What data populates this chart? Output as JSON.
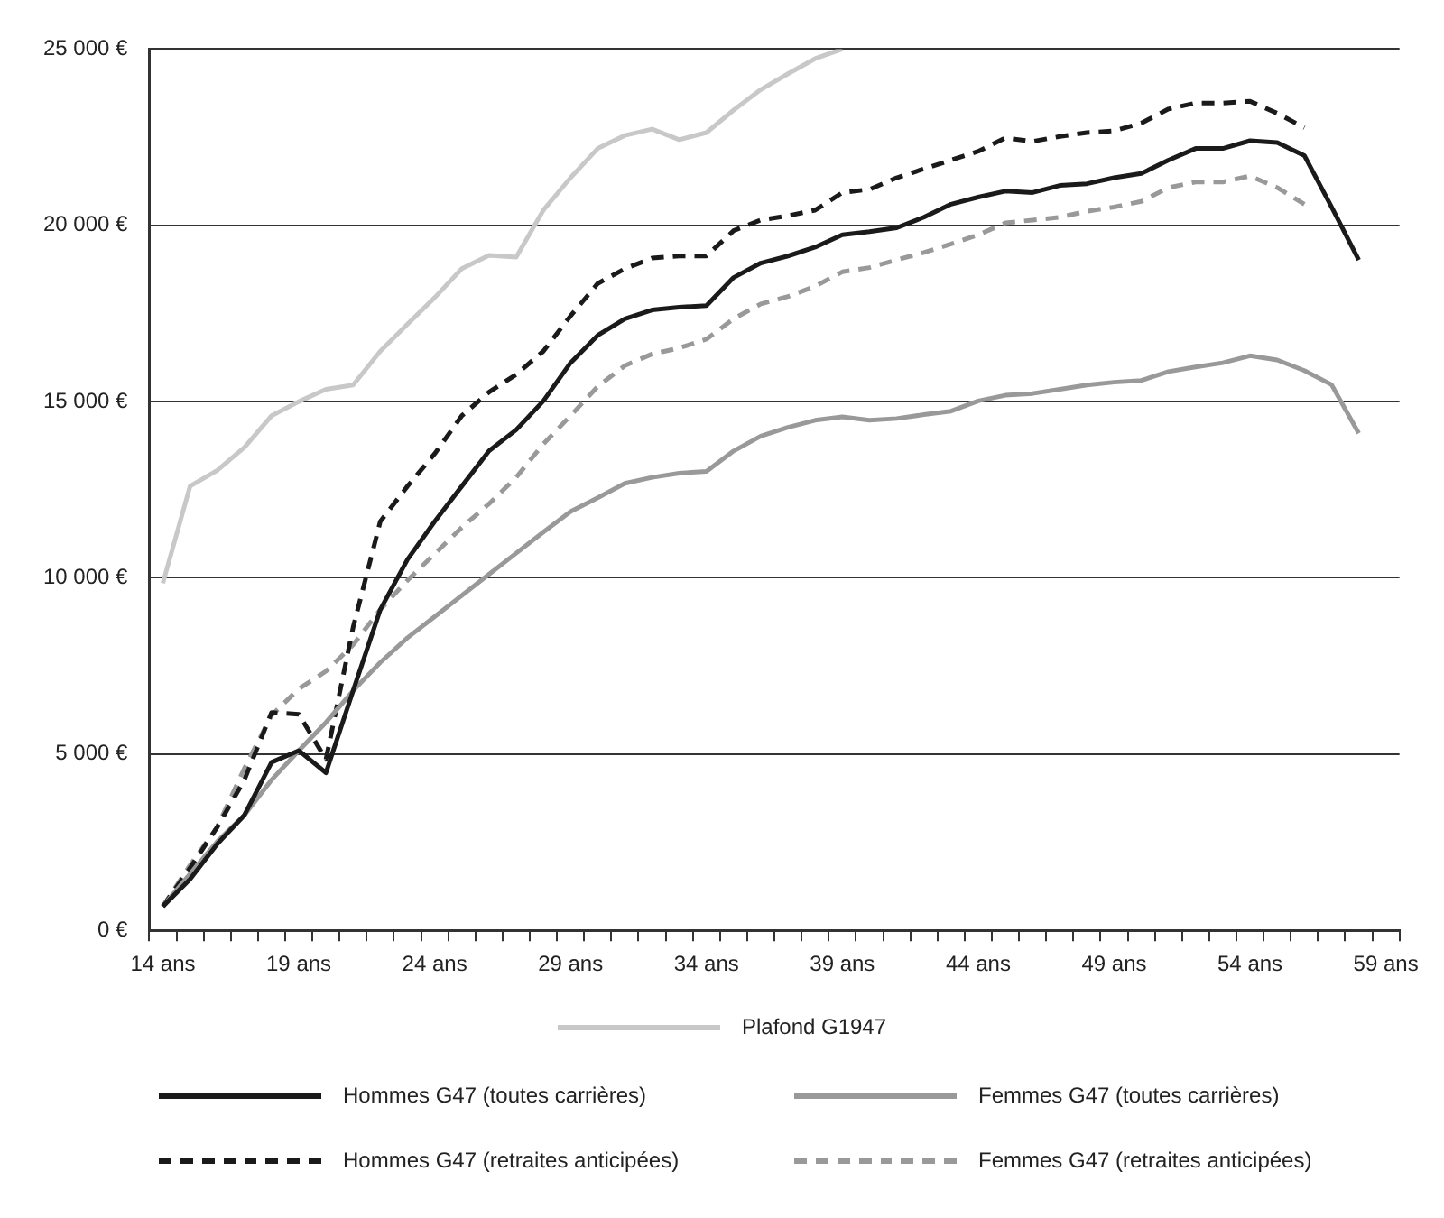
{
  "chart_data": {
    "type": "line",
    "categories": [
      "14 ans",
      null,
      null,
      null,
      null,
      "19 ans",
      null,
      null,
      null,
      null,
      "24 ans",
      null,
      null,
      null,
      null,
      "29 ans",
      null,
      null,
      null,
      null,
      "34 ans",
      null,
      null,
      null,
      null,
      "39 ans",
      null,
      null,
      null,
      null,
      "44 ans",
      null,
      null,
      null,
      null,
      "49 ans",
      null,
      null,
      null,
      null,
      "54 ans",
      null,
      null,
      null,
      null,
      "59 ans"
    ],
    "ylim": [
      0,
      25000
    ],
    "yticks": [
      {
        "value": 0,
        "label": "0 €"
      },
      {
        "value": 5000,
        "label": "5 000 €"
      },
      {
        "value": 10000,
        "label": "10 000 €"
      },
      {
        "value": 15000,
        "label": "15 000 €"
      },
      {
        "value": 20000,
        "label": "20 000 €"
      },
      {
        "value": 25000,
        "label": "25 000 €"
      }
    ],
    "grid": "y",
    "legend": "bottom",
    "marker": "none",
    "series": [
      {
        "name": "Plafond G1947",
        "color": "#c8c8c8",
        "line_style": "solid",
        "values": [
          9850,
          12600,
          13050,
          13700,
          14600,
          15000,
          15350,
          15470,
          16430,
          17200,
          17950,
          18770,
          19150,
          19100,
          20430,
          21350,
          22180,
          22550,
          22730,
          22430,
          22630,
          23270,
          23850,
          24300,
          24730,
          25000,
          null,
          null,
          null,
          null,
          null,
          null,
          null,
          null,
          null,
          null,
          null,
          null,
          null,
          null,
          null,
          null,
          null,
          null,
          null,
          null
        ]
      },
      {
        "name": "Hommes G47 (toutes carrières)",
        "color": "#1a1a1a",
        "line_style": "solid",
        "values": [
          680,
          1450,
          2450,
          3270,
          4770,
          5100,
          4470,
          6800,
          9100,
          10520,
          11600,
          12600,
          13600,
          14200,
          15020,
          16100,
          16880,
          17350,
          17600,
          17680,
          17720,
          18520,
          18930,
          19130,
          19380,
          19730,
          19820,
          19930,
          20230,
          20600,
          20800,
          20970,
          20930,
          21130,
          21180,
          21350,
          21470,
          21850,
          22180,
          22180,
          22400,
          22350,
          21980,
          20520,
          19020,
          null
        ]
      },
      {
        "name": "Femmes G47 (toutes carrières)",
        "color": "#999999",
        "line_style": "solid",
        "values": [
          680,
          1600,
          2520,
          3270,
          4270,
          5100,
          5900,
          6800,
          7600,
          8300,
          8900,
          9500,
          10100,
          10700,
          11300,
          11880,
          12270,
          12680,
          12850,
          12970,
          13020,
          13600,
          14020,
          14270,
          14470,
          14570,
          14470,
          14520,
          14630,
          14730,
          15020,
          15180,
          15230,
          15350,
          15470,
          15550,
          15600,
          15850,
          15980,
          16100,
          16300,
          16180,
          15880,
          15480,
          14100,
          null
        ]
      },
      {
        "name": "Hommes G47 (retraites anticipées)",
        "color": "#1a1a1a",
        "line_style": "dashed",
        "values": [
          680,
          1770,
          2930,
          4270,
          6180,
          6130,
          4850,
          8600,
          11600,
          12600,
          13520,
          14600,
          15270,
          15770,
          16430,
          17430,
          18350,
          18770,
          19070,
          19130,
          19130,
          19850,
          20150,
          20270,
          20430,
          20930,
          21020,
          21350,
          21600,
          21850,
          22100,
          22480,
          22380,
          22520,
          22630,
          22680,
          22900,
          23300,
          23470,
          23470,
          23520,
          23180,
          22770,
          null,
          null,
          null
        ]
      },
      {
        "name": "Femmes G47 (retraites anticipées)",
        "color": "#999999",
        "line_style": "dashed",
        "values": [
          680,
          1850,
          2930,
          4600,
          6100,
          6850,
          7350,
          8100,
          9100,
          9930,
          10680,
          11430,
          12100,
          12850,
          13800,
          14600,
          15430,
          16020,
          16350,
          16520,
          16770,
          17350,
          17770,
          17980,
          18270,
          18680,
          18800,
          19020,
          19230,
          19470,
          19730,
          20070,
          20150,
          20230,
          20400,
          20520,
          20680,
          21070,
          21230,
          21230,
          21400,
          21070,
          20600,
          null,
          null,
          null
        ]
      }
    ]
  }
}
